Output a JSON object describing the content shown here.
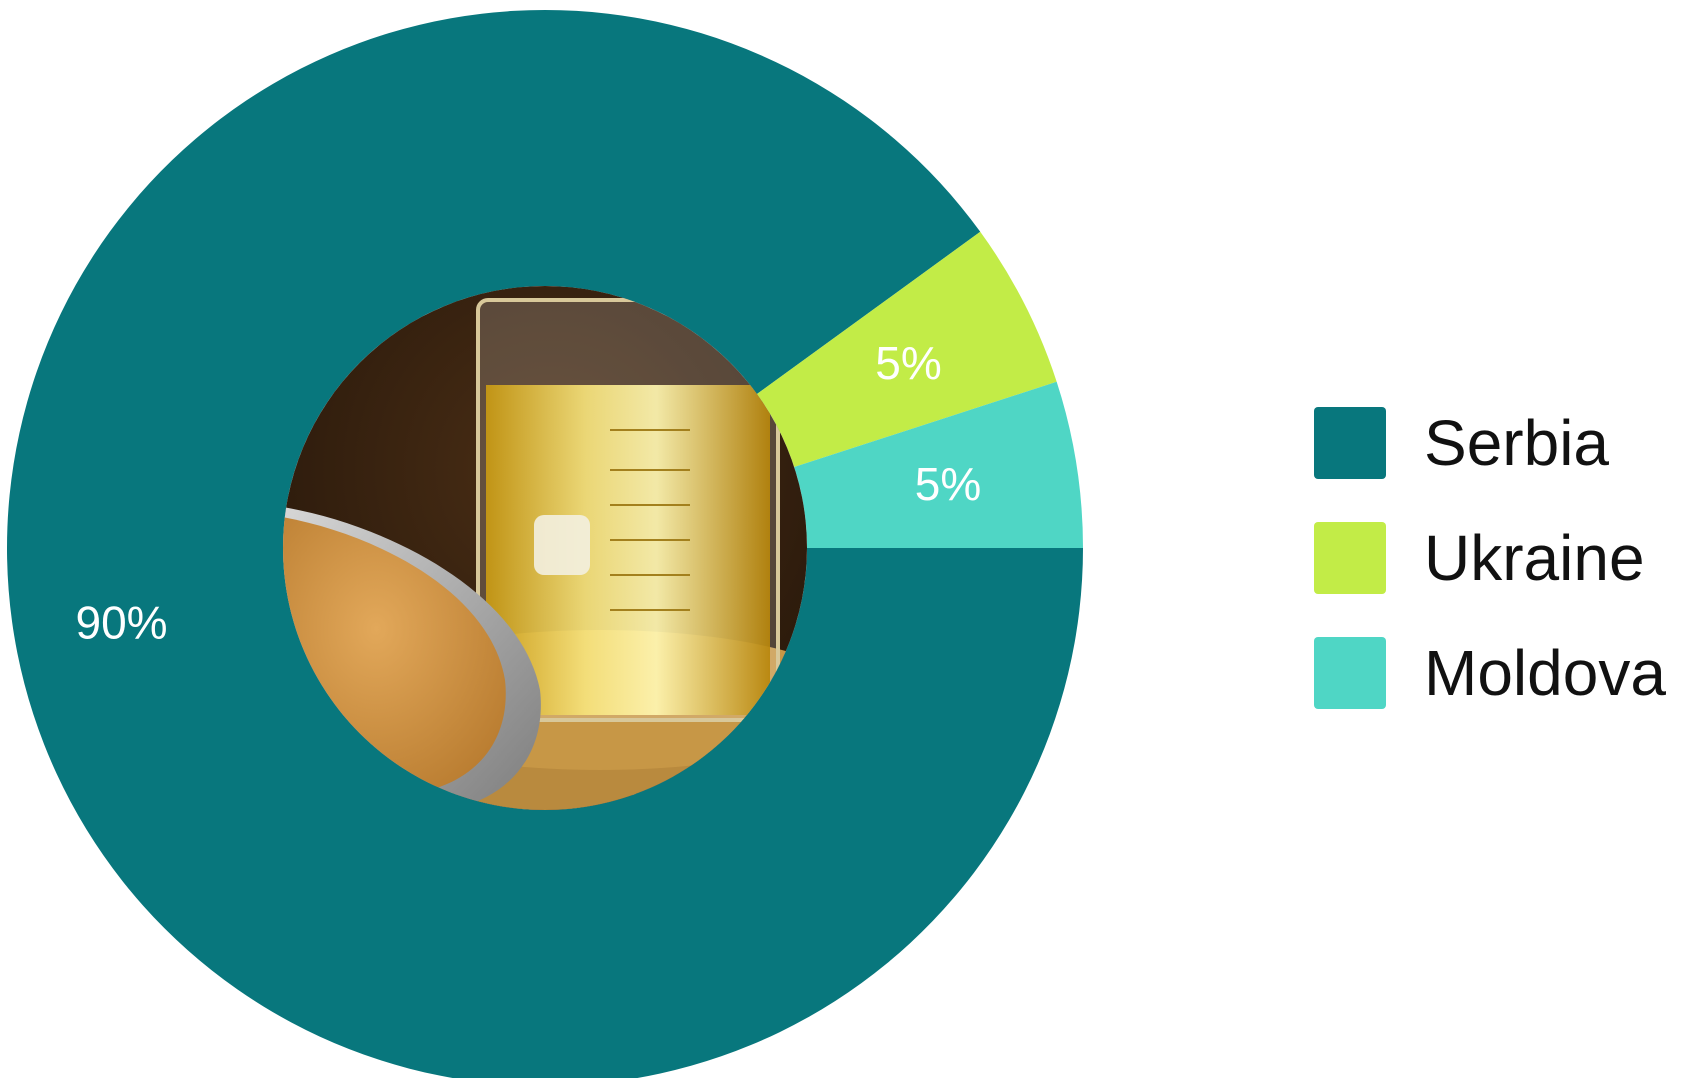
{
  "colors": {
    "Serbia": "#08777D",
    "Ukraine": "#C2EC47",
    "Moldova": "#4FD6C5",
    "background": "#FFFFFF"
  },
  "center_image": "photo: beaker of golden oil with soybeans and a scoop of meal",
  "chart_data": {
    "type": "pie",
    "title": "",
    "categories": [
      "Serbia",
      "Ukraine",
      "Moldova"
    ],
    "values": [
      90,
      5,
      5
    ],
    "value_labels": [
      "90%",
      "5%",
      "5%"
    ],
    "legend_position": "right",
    "donut": true
  },
  "legend": {
    "items": [
      {
        "label": "Serbia"
      },
      {
        "label": "Ukraine"
      },
      {
        "label": "Moldova"
      }
    ]
  }
}
